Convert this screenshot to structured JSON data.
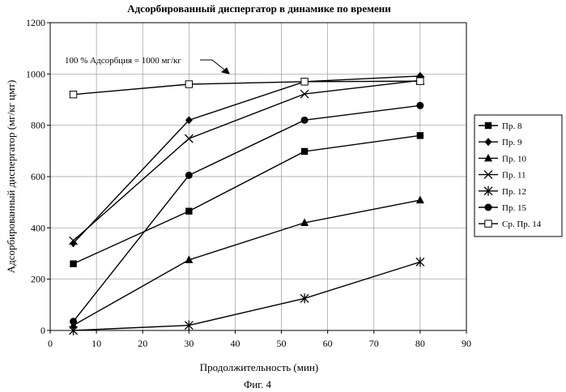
{
  "chart_data": {
    "type": "line",
    "title": "Адсорбированный диспергатор в динамике по времени",
    "xlabel": "Продолжительность (мин)",
    "ylabel": "Адсорбированный диспергатор (мг/кг цмт)",
    "xlim": [
      0,
      90
    ],
    "ylim": [
      0,
      1200
    ],
    "xticks": [
      "0",
      "10",
      "20",
      "30",
      "40",
      "50",
      "60",
      "70",
      "80",
      "90"
    ],
    "yticks": [
      "0",
      "200",
      "400",
      "600",
      "800",
      "1000",
      "1200"
    ],
    "grid": "horizontal and vertical",
    "legend_position": "right",
    "annotation": "100 % Адсорбция = 1000 мг/кг",
    "caption": "Фиг. 4",
    "series": [
      {
        "name": "Пр. 8",
        "marker": "filled-square",
        "x": [
          5,
          30,
          55,
          80
        ],
        "y": [
          260,
          465,
          698,
          760
        ]
      },
      {
        "name": "Пр. 9",
        "marker": "filled-diamond",
        "x": [
          5,
          30,
          55,
          80
        ],
        "y": [
          340,
          820,
          970,
          992
        ]
      },
      {
        "name": "Пр. 10",
        "marker": "filled-triangle",
        "x": [
          5,
          30,
          55,
          80
        ],
        "y": [
          20,
          275,
          420,
          508
        ]
      },
      {
        "name": "Пр. 11",
        "marker": "x",
        "x": [
          5,
          30,
          55,
          80
        ],
        "y": [
          350,
          748,
          922,
          975
        ]
      },
      {
        "name": "Пр. 12",
        "marker": "asterisk",
        "x": [
          5,
          30,
          55,
          80
        ],
        "y": [
          0,
          20,
          125,
          267
        ]
      },
      {
        "name": "Пр. 15",
        "marker": "filled-circle",
        "x": [
          5,
          30,
          55,
          80
        ],
        "y": [
          35,
          605,
          820,
          877
        ]
      },
      {
        "name": "Ср. Пр. 14",
        "marker": "open-square",
        "x": [
          5,
          30,
          55,
          80
        ],
        "y": [
          920,
          960,
          970,
          972
        ]
      }
    ]
  }
}
